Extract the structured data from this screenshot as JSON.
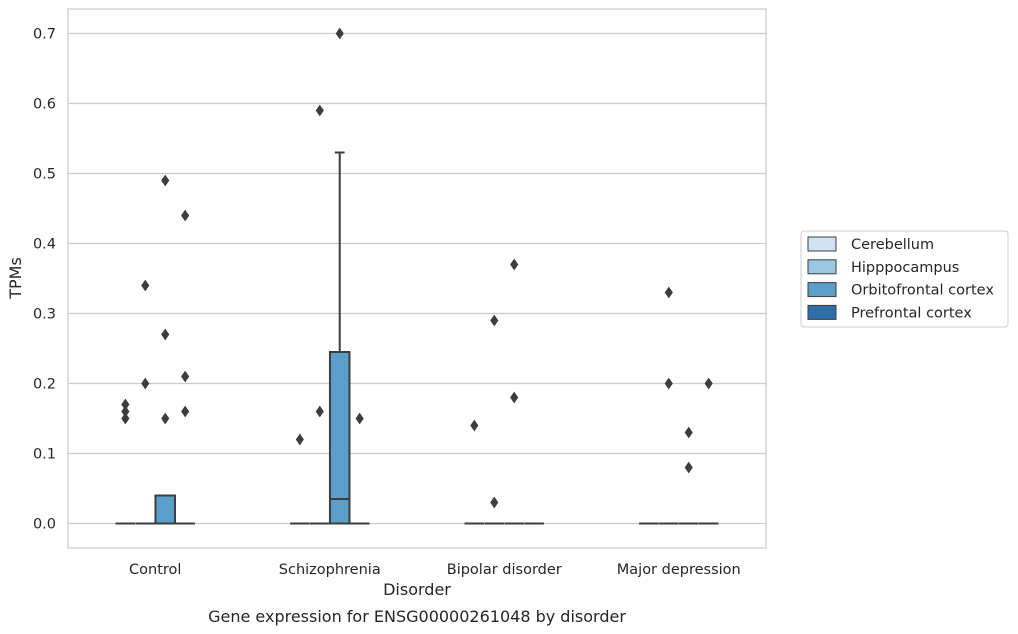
{
  "chart_data": {
    "type": "box",
    "title": "",
    "caption": "Gene expression for ENSG00000261048 by disorder",
    "xlabel": "Disorder",
    "ylabel": "TPMs",
    "ylim": [
      -0.035,
      0.735
    ],
    "yticks": [
      0.0,
      0.1,
      0.2,
      0.3,
      0.4,
      0.5,
      0.6,
      0.7
    ],
    "ytick_labels": [
      "0.0",
      "0.1",
      "0.2",
      "0.3",
      "0.4",
      "0.5",
      "0.6",
      "0.7"
    ],
    "grid": "horizontal",
    "legend_position": "right",
    "categories": [
      "Control",
      "Schizophrenia",
      "Bipolar disorder",
      "Major depression"
    ],
    "series": [
      {
        "name": "Cerebellum",
        "color": "#d1e2f2",
        "boxes": [
          {
            "q1": 0,
            "median": 0,
            "q3": 0,
            "whisker_low": 0,
            "whisker_high": 0,
            "outliers": [
              0.15,
              0.16,
              0.17
            ]
          },
          {
            "q1": 0,
            "median": 0,
            "q3": 0,
            "whisker_low": 0,
            "whisker_high": 0,
            "outliers": [
              0.12
            ]
          },
          {
            "q1": 0,
            "median": 0,
            "q3": 0,
            "whisker_low": 0,
            "whisker_high": 0,
            "outliers": [
              0.14
            ]
          },
          {
            "q1": 0,
            "median": 0,
            "q3": 0,
            "whisker_low": 0,
            "whisker_high": 0,
            "outliers": []
          }
        ]
      },
      {
        "name": "Hipppocampus",
        "color": "#9ac8e0",
        "boxes": [
          {
            "q1": 0,
            "median": 0,
            "q3": 0,
            "whisker_low": 0,
            "whisker_high": 0,
            "outliers": [
              0.2,
              0.34
            ]
          },
          {
            "q1": 0,
            "median": 0,
            "q3": 0,
            "whisker_low": 0,
            "whisker_high": 0,
            "outliers": [
              0.16,
              0.59
            ]
          },
          {
            "q1": 0,
            "median": 0,
            "q3": 0,
            "whisker_low": 0,
            "whisker_high": 0,
            "outliers": [
              0.03,
              0.29
            ]
          },
          {
            "q1": 0,
            "median": 0,
            "q3": 0,
            "whisker_low": 0,
            "whisker_high": 0,
            "outliers": [
              0.2,
              0.33
            ]
          }
        ]
      },
      {
        "name": "Orbitofrontal cortex",
        "color": "#5a9ec9",
        "boxes": [
          {
            "q1": 0,
            "median": 0,
            "q3": 0.04,
            "whisker_low": 0,
            "whisker_high": 0.04,
            "outliers": [
              0.15,
              0.27,
              0.49
            ]
          },
          {
            "q1": 0,
            "median": 0.035,
            "q3": 0.245,
            "whisker_low": 0,
            "whisker_high": 0.53,
            "outliers": [
              0.7
            ]
          },
          {
            "q1": 0,
            "median": 0,
            "q3": 0,
            "whisker_low": 0,
            "whisker_high": 0,
            "outliers": [
              0.18,
              0.37
            ]
          },
          {
            "q1": 0,
            "median": 0,
            "q3": 0,
            "whisker_low": 0,
            "whisker_high": 0,
            "outliers": [
              0.08,
              0.13
            ]
          }
        ]
      },
      {
        "name": "Prefrontal cortex",
        "color": "#2c6ea8",
        "boxes": [
          {
            "q1": 0,
            "median": 0,
            "q3": 0,
            "whisker_low": 0,
            "whisker_high": 0,
            "outliers": [
              0.16,
              0.21,
              0.44
            ]
          },
          {
            "q1": 0,
            "median": 0,
            "q3": 0,
            "whisker_low": 0,
            "whisker_high": 0,
            "outliers": [
              0.15
            ]
          },
          {
            "q1": 0,
            "median": 0,
            "q3": 0,
            "whisker_low": 0,
            "whisker_high": 0,
            "outliers": []
          },
          {
            "q1": 0,
            "median": 0,
            "q3": 0,
            "whisker_low": 0,
            "whisker_high": 0,
            "outliers": [
              0.2
            ]
          }
        ]
      }
    ]
  }
}
